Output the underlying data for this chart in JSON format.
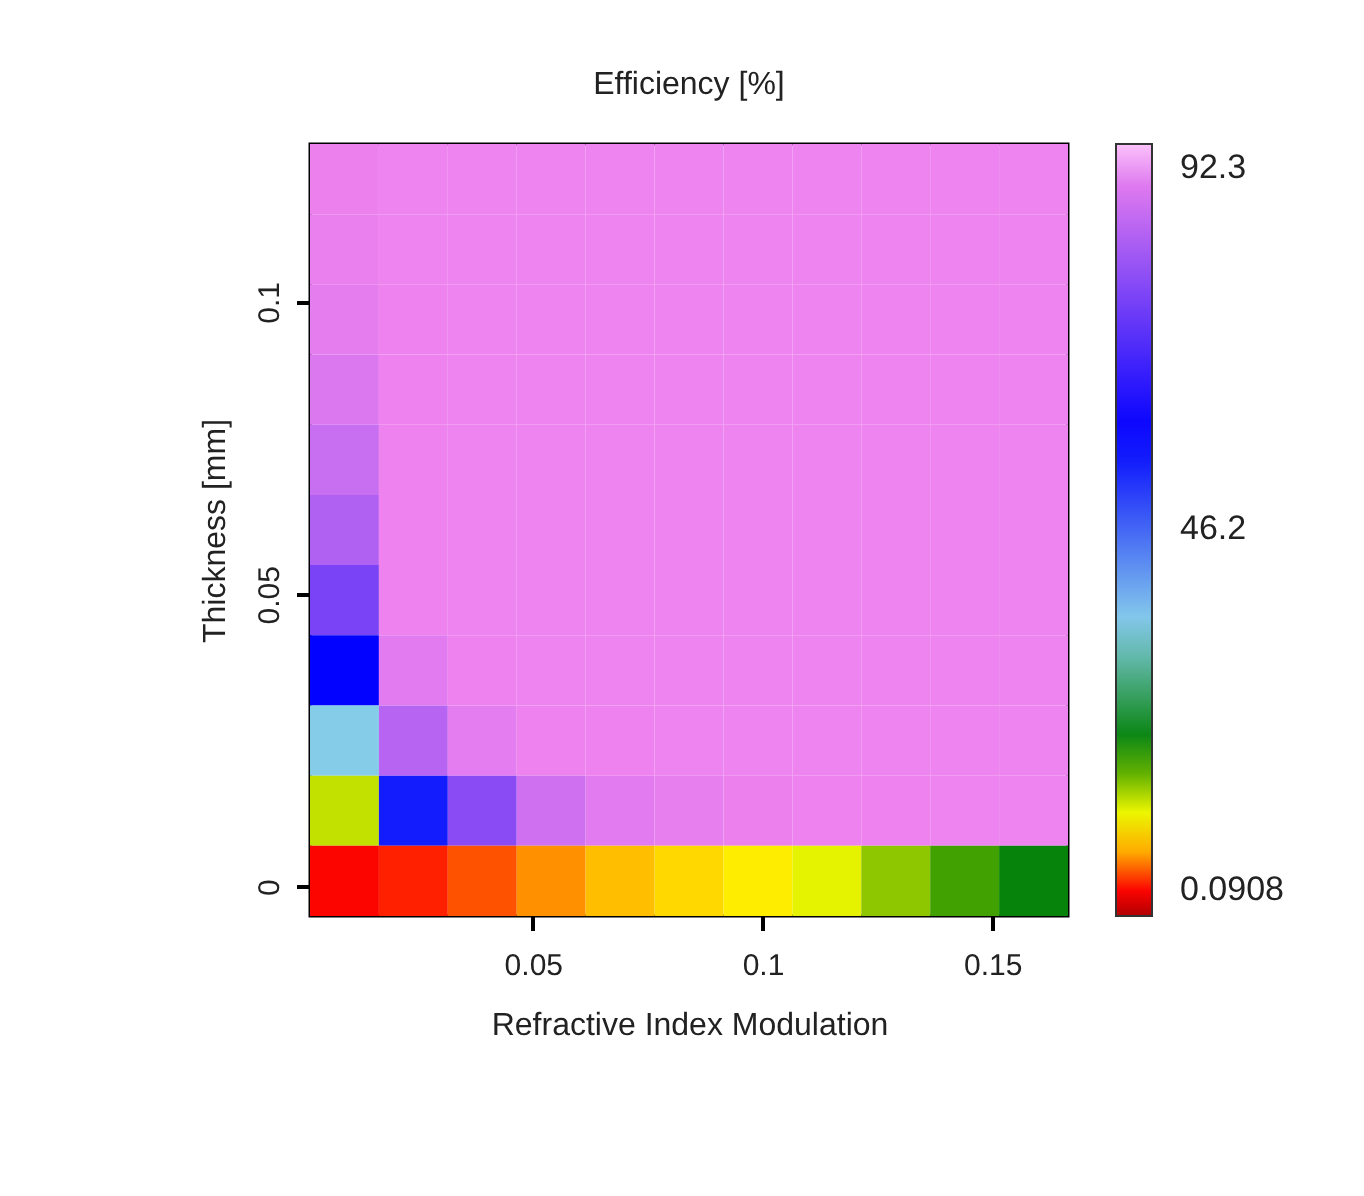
{
  "chart_data": {
    "type": "heatmap",
    "title": "Efficiency [%]",
    "xlabel": "Refractive Index Modulation",
    "ylabel": "Thickness [mm]",
    "x": [
      0.009,
      0.024,
      0.039,
      0.054,
      0.069,
      0.084,
      0.099,
      0.114,
      0.129,
      0.144,
      0.159
    ],
    "y": [
      0.121,
      0.109,
      0.097,
      0.085,
      0.073,
      0.061,
      0.049,
      0.037,
      0.025,
      0.013,
      0.001
    ],
    "xlim": [
      0.0015,
      0.1665
    ],
    "ylim": [
      -0.005,
      0.127
    ],
    "xticks": [
      0.05,
      0.1,
      0.15
    ],
    "yticks": [
      0,
      0.05,
      0.1
    ],
    "cells": [
      [
        92.0,
        92.3,
        92.3,
        92.3,
        92.3,
        92.3,
        92.3,
        92.3,
        92.3,
        92.3,
        92.3
      ],
      [
        91.7,
        92.3,
        92.3,
        92.3,
        92.3,
        92.3,
        92.3,
        92.3,
        92.3,
        92.3,
        92.3
      ],
      [
        91.0,
        92.2,
        92.3,
        92.3,
        92.3,
        92.3,
        92.3,
        92.3,
        92.3,
        92.3,
        92.3
      ],
      [
        89.7,
        92.2,
        92.3,
        92.3,
        92.3,
        92.3,
        92.3,
        92.3,
        92.3,
        92.3,
        92.3
      ],
      [
        86.9,
        92.2,
        92.3,
        92.3,
        92.3,
        92.3,
        92.3,
        92.3,
        92.3,
        92.3,
        92.3
      ],
      [
        83.5,
        92.2,
        92.3,
        92.3,
        92.3,
        92.3,
        92.3,
        92.3,
        92.3,
        92.3,
        92.3
      ],
      [
        75.7,
        92.2,
        92.3,
        92.3,
        92.3,
        92.3,
        92.3,
        92.3,
        92.3,
        92.3,
        92.3
      ],
      [
        58.0,
        90.5,
        92.2,
        92.3,
        92.3,
        92.3,
        92.3,
        92.3,
        92.3,
        92.3,
        92.3
      ],
      [
        34.0,
        84.5,
        90.9,
        92.2,
        92.2,
        92.3,
        92.3,
        92.3,
        92.3,
        92.3,
        92.3
      ],
      [
        11.5,
        55.0,
        78.0,
        87.6,
        90.4,
        91.5,
        92.0,
        92.2,
        92.2,
        92.3,
        92.3
      ],
      [
        0.0908,
        1.0,
        2.4,
        4.1,
        6.0,
        7.3,
        8.4,
        10.2,
        13.4,
        16.2,
        19.2
      ]
    ],
    "clim": [
      -3.2,
      95.4
    ],
    "cticks": [
      0.0908,
      46.2,
      92.3
    ]
  }
}
